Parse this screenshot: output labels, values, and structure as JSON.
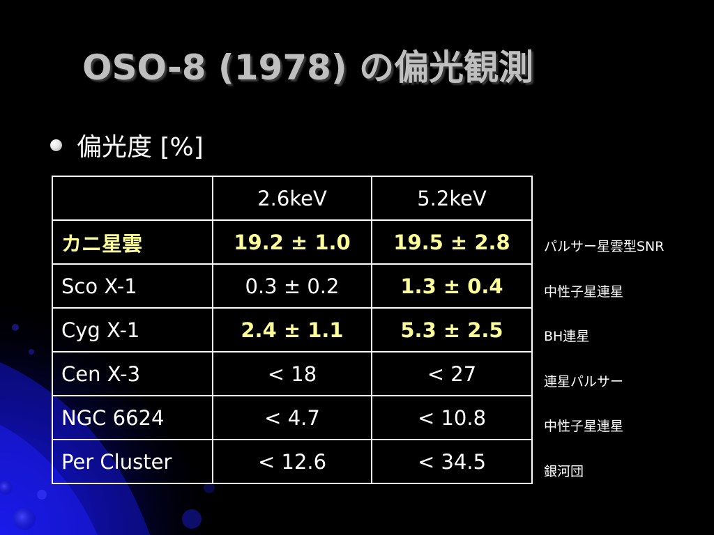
{
  "slide": {
    "title": "OSO-8 (1978) の偏光観測",
    "bullet": "偏光度 [%]"
  },
  "table": {
    "headers": [
      "",
      "2.6keV",
      "5.2keV"
    ],
    "rows": [
      {
        "source": "カニ星雲",
        "v26": "19.2 ± 1.0",
        "v52": "19.5 ± 2.8"
      },
      {
        "source": "Sco X-1",
        "v26": "0.3 ± 0.2",
        "v52": "1.3 ± 0.4"
      },
      {
        "source": "Cyg X-1",
        "v26": "2.4 ± 1.1",
        "v52": "5.3 ± 2.5"
      },
      {
        "source": "Cen X-3",
        "v26": "< 18",
        "v52": "< 27"
      },
      {
        "source": "NGC 6624",
        "v26": "< 4.7",
        "v52": "< 10.8"
      },
      {
        "source": "Per Cluster",
        "v26": "< 12.6",
        "v52": "< 34.5"
      }
    ]
  },
  "notes": [
    "パルサー星雲型SNR",
    "中性子星連星",
    "BH連星",
    "連星パルサー",
    "中性子星連星",
    "銀河団"
  ],
  "colors": {
    "background": "#000000",
    "title": "#bfbfbf",
    "highlight": "#ffff99",
    "accent_blue": "#1a1aff"
  }
}
